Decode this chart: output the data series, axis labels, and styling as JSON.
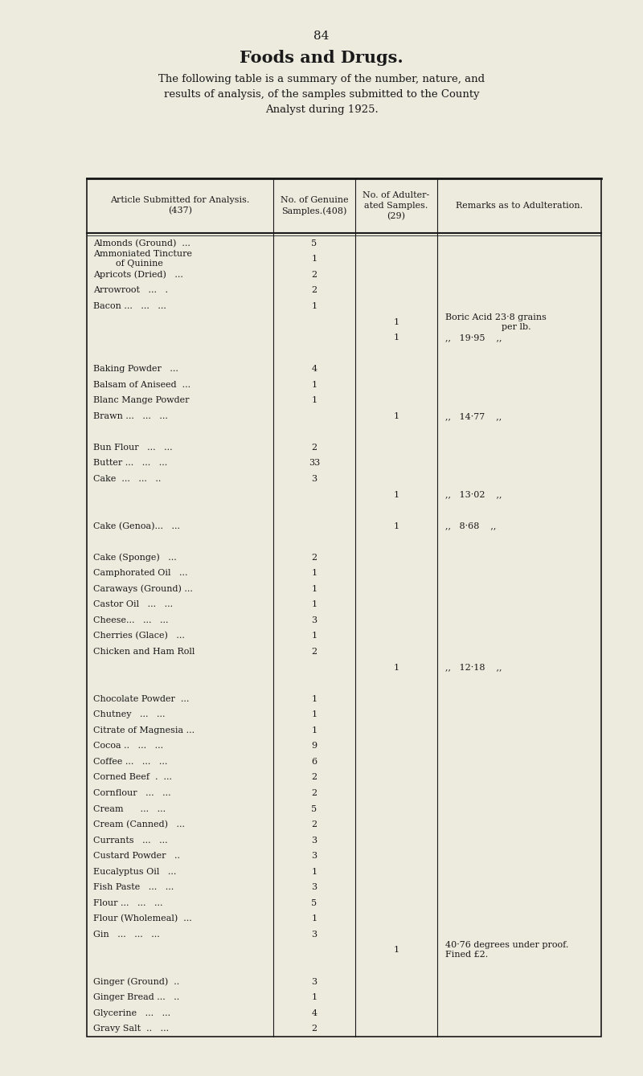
{
  "page_number": "84",
  "title": "Foods and Drugs.",
  "intro_text": "The following table is a summary of the number, nature, and\nresults of analysis, of the samples submitted to the County\nAnalyst during 1925.",
  "bg_color": "#edeade",
  "text_color": "#1a1a1a",
  "col_headers": [
    "Article Submitted for Analysis.\n(437)",
    "No. of Genuine\nSamples.(408)",
    "No. of Adulter-\nated Samples.\n(29)",
    "Remarks as to Adulteration."
  ],
  "rows": [
    {
      "article": "Almonds (Ground)  ...",
      "genuine": "5",
      "adulterated": "",
      "remarks": "",
      "extra_lines": 0
    },
    {
      "article": "Ammoniated Tincture\n        of Quinine",
      "genuine": "1",
      "adulterated": "",
      "remarks": "",
      "extra_lines": 1
    },
    {
      "article": "Apricots (Dried)   ...",
      "genuine": "2",
      "adulterated": "",
      "remarks": "",
      "extra_lines": 0
    },
    {
      "article": "Arrowroot   ...   .",
      "genuine": "2",
      "adulterated": "",
      "remarks": "",
      "extra_lines": 0
    },
    {
      "article": "Bacon ...   ...   ...",
      "genuine": "1",
      "adulterated": "",
      "remarks": "",
      "extra_lines": 0
    },
    {
      "article": "",
      "genuine": "",
      "adulterated": "1",
      "remarks": "Boric Acid 23·8 grains\n                    per lb.",
      "extra_lines": 1
    },
    {
      "article": "",
      "genuine": "",
      "adulterated": "1",
      "remarks": ",,   19·95    ,,",
      "extra_lines": 0
    },
    {
      "article": "",
      "genuine": "",
      "adulterated": "",
      "remarks": "",
      "extra_lines": 0
    },
    {
      "article": "Baking Powder   ...",
      "genuine": "4",
      "adulterated": "",
      "remarks": "",
      "extra_lines": 0
    },
    {
      "article": "Balsam of Aniseed  ...",
      "genuine": "1",
      "adulterated": "",
      "remarks": "",
      "extra_lines": 0
    },
    {
      "article": "Blanc Mange Powder",
      "genuine": "1",
      "adulterated": "",
      "remarks": "",
      "extra_lines": 0
    },
    {
      "article": "Brawn ...   ...   ...",
      "genuine": "",
      "adulterated": "1",
      "remarks": ",,   14·77    ,,",
      "extra_lines": 0
    },
    {
      "article": "",
      "genuine": "",
      "adulterated": "",
      "remarks": "",
      "extra_lines": 0
    },
    {
      "article": "Bun Flour   ...   ...",
      "genuine": "2",
      "adulterated": "",
      "remarks": "",
      "extra_lines": 0
    },
    {
      "article": "Butter ...   ...   ...",
      "genuine": "33",
      "adulterated": "",
      "remarks": "",
      "extra_lines": 0
    },
    {
      "article": "Cake  ...   ...   ..",
      "genuine": "3",
      "adulterated": "",
      "remarks": "",
      "extra_lines": 0
    },
    {
      "article": "",
      "genuine": "",
      "adulterated": "1",
      "remarks": ",,   13·02    ,,",
      "extra_lines": 0
    },
    {
      "article": "",
      "genuine": "",
      "adulterated": "",
      "remarks": "",
      "extra_lines": 0
    },
    {
      "article": "Cake (Genoa)...   ...",
      "genuine": "",
      "adulterated": "1",
      "remarks": ",,   8·68    ,,",
      "extra_lines": 0
    },
    {
      "article": "",
      "genuine": "",
      "adulterated": "",
      "remarks": "",
      "extra_lines": 0
    },
    {
      "article": "Cake (Sponge)   ...",
      "genuine": "2",
      "adulterated": "",
      "remarks": "",
      "extra_lines": 0
    },
    {
      "article": "Camphorated Oil   ...",
      "genuine": "1",
      "adulterated": "",
      "remarks": "",
      "extra_lines": 0
    },
    {
      "article": "Caraways (Ground) ...",
      "genuine": "1",
      "adulterated": "",
      "remarks": "",
      "extra_lines": 0
    },
    {
      "article": "Castor Oil   ...   ...",
      "genuine": "1",
      "adulterated": "",
      "remarks": "",
      "extra_lines": 0
    },
    {
      "article": "Cheese...   ...   ...",
      "genuine": "3",
      "adulterated": "",
      "remarks": "",
      "extra_lines": 0
    },
    {
      "article": "Cherries (Glace)   ...",
      "genuine": "1",
      "adulterated": "",
      "remarks": "",
      "extra_lines": 0
    },
    {
      "article": "Chicken and Ham Roll",
      "genuine": "2",
      "adulterated": "",
      "remarks": "",
      "extra_lines": 0
    },
    {
      "article": "",
      "genuine": "",
      "adulterated": "1",
      "remarks": ",,   12·18    ,,",
      "extra_lines": 0
    },
    {
      "article": "",
      "genuine": "",
      "adulterated": "",
      "remarks": "",
      "extra_lines": 0
    },
    {
      "article": "Chocolate Powder  ...",
      "genuine": "1",
      "adulterated": "",
      "remarks": "",
      "extra_lines": 0
    },
    {
      "article": "Chutney   ...   ...",
      "genuine": "1",
      "adulterated": "",
      "remarks": "",
      "extra_lines": 0
    },
    {
      "article": "Citrate of Magnesia ...",
      "genuine": "1",
      "adulterated": "",
      "remarks": "",
      "extra_lines": 0
    },
    {
      "article": "Cocoa ..   ...   ...",
      "genuine": "9",
      "adulterated": "",
      "remarks": "",
      "extra_lines": 0
    },
    {
      "article": "Coffee ...   ...   ...",
      "genuine": "6",
      "adulterated": "",
      "remarks": "",
      "extra_lines": 0
    },
    {
      "article": "Corned Beef  .  ...",
      "genuine": "2",
      "adulterated": "",
      "remarks": "",
      "extra_lines": 0
    },
    {
      "article": "Cornflour   ...   ...",
      "genuine": "2",
      "adulterated": "",
      "remarks": "",
      "extra_lines": 0
    },
    {
      "article": "Cream      ...   ...",
      "genuine": "5",
      "adulterated": "",
      "remarks": "",
      "extra_lines": 0
    },
    {
      "article": "Cream (Canned)   ...",
      "genuine": "2",
      "adulterated": "",
      "remarks": "",
      "extra_lines": 0
    },
    {
      "article": "Currants   ...   ...",
      "genuine": "3",
      "adulterated": "",
      "remarks": "",
      "extra_lines": 0
    },
    {
      "article": "Custard Powder   ..",
      "genuine": "3",
      "adulterated": "",
      "remarks": "",
      "extra_lines": 0
    },
    {
      "article": "Eucalyptus Oil   ...",
      "genuine": "1",
      "adulterated": "",
      "remarks": "",
      "extra_lines": 0
    },
    {
      "article": "Fish Paste   ...   ...",
      "genuine": "3",
      "adulterated": "",
      "remarks": "",
      "extra_lines": 0
    },
    {
      "article": "Flour ...   ...   ...",
      "genuine": "5",
      "adulterated": "",
      "remarks": "",
      "extra_lines": 0
    },
    {
      "article": "Flour (Wholemeal)  ...",
      "genuine": "1",
      "adulterated": "",
      "remarks": "",
      "extra_lines": 0
    },
    {
      "article": "Gin   ...   ...   ...",
      "genuine": "3",
      "adulterated": "",
      "remarks": "",
      "extra_lines": 0
    },
    {
      "article": "",
      "genuine": "",
      "adulterated": "1",
      "remarks": "40·76 degrees under proof.\nFined £2.",
      "extra_lines": 1
    },
    {
      "article": "",
      "genuine": "",
      "adulterated": "",
      "remarks": "",
      "extra_lines": 0
    },
    {
      "article": "Ginger (Ground)  ..",
      "genuine": "3",
      "adulterated": "",
      "remarks": "",
      "extra_lines": 0
    },
    {
      "article": "Ginger Bread ...   ..",
      "genuine": "1",
      "adulterated": "",
      "remarks": "",
      "extra_lines": 0
    },
    {
      "article": "Glycerine   ...   ...",
      "genuine": "4",
      "adulterated": "",
      "remarks": "",
      "extra_lines": 0
    },
    {
      "article": "Gravy Salt  ..   ...",
      "genuine": "2",
      "adulterated": "",
      "remarks": "",
      "extra_lines": 0
    }
  ]
}
